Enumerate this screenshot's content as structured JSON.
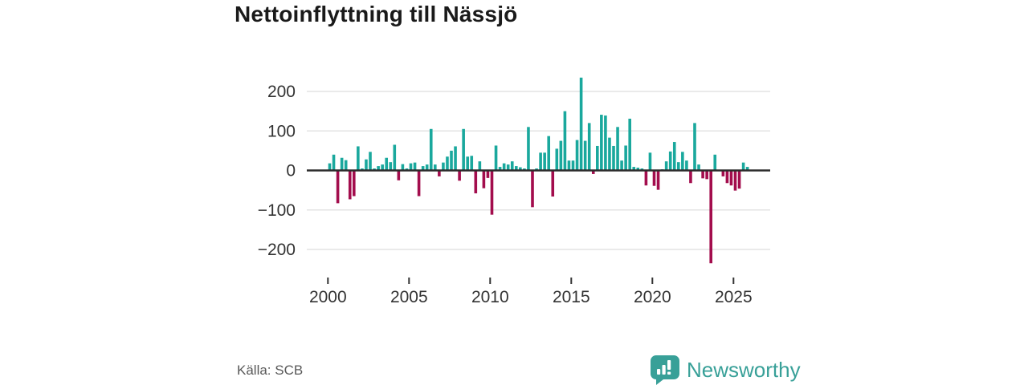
{
  "title": "Nettoinflyttning till Nässjö",
  "source": "Källa: SCB",
  "logo": {
    "text": "Newsworthy",
    "icon": "newsworthy-bubble-barchart-icon"
  },
  "colors": {
    "positive_bar": "#1aa89d",
    "negative_bar": "#a30d4d",
    "zero_axis": "#2b2b2b",
    "gridline": "#e3e3e3",
    "tick_label": "#333333",
    "logo_teal": "#38a098",
    "source_text": "#595959"
  },
  "chart_data": {
    "type": "bar",
    "title": "Nettoinflyttning till Nässjö",
    "x_unit": "quarter",
    "start": "2000-Q1",
    "end": "2025-Q4",
    "x_ticks": [
      2000,
      2005,
      2010,
      2015,
      2020,
      2025
    ],
    "y_ticks": [
      200,
      100,
      0,
      -100,
      -200
    ],
    "ylim": [
      -250,
      250
    ],
    "grid": true,
    "legend": false,
    "values": [
      18,
      40,
      -83,
      32,
      26,
      -73,
      -65,
      61,
      5,
      28,
      47,
      5,
      11,
      15,
      32,
      21,
      65,
      -25,
      16,
      5,
      18,
      20,
      -65,
      11,
      15,
      105,
      15,
      -15,
      20,
      35,
      50,
      61,
      -26,
      105,
      35,
      37,
      -58,
      23,
      -45,
      -19,
      -112,
      63,
      9,
      18,
      15,
      23,
      11,
      8,
      5,
      110,
      -93,
      5,
      45,
      45,
      87,
      -66,
      55,
      75,
      150,
      25,
      25,
      77,
      235,
      75,
      120,
      -9,
      62,
      141,
      139,
      83,
      62,
      110,
      25,
      63,
      131,
      9,
      7,
      5,
      -38,
      45,
      -39,
      -49,
      3,
      23,
      48,
      72,
      21,
      47,
      25,
      -32,
      120,
      15,
      -20,
      -22,
      -235,
      40,
      0,
      -15,
      -32,
      -38,
      -51,
      -46,
      20,
      9
    ]
  }
}
